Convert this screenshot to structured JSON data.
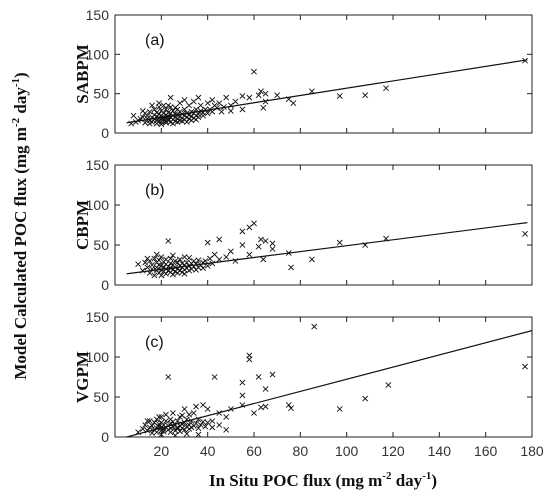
{
  "figure": {
    "xlabel_main": "In Situ POC flux (mg m",
    "xlabel_sup1": "-2",
    "xlabel_mid": " day",
    "xlabel_sup2": "-1",
    "xlabel_end": ")",
    "ylabel_main": "Model Calculated POC flux (mg m",
    "ylabel_sup1": "-2",
    "ylabel_mid": " day",
    "ylabel_sup2": "-1",
    "ylabel_end": ")"
  },
  "chart_data": [
    {
      "type": "scatter",
      "panel_label": "(a)",
      "ylabel": "SABPM",
      "xlim": [
        0,
        180
      ],
      "ylim": [
        0,
        150
      ],
      "xticks": [],
      "yticks": [
        0,
        50,
        100,
        150
      ],
      "fit_line": [
        [
          5,
          13
        ],
        [
          178,
          93
        ]
      ],
      "points": [
        [
          7,
          12
        ],
        [
          9,
          14
        ],
        [
          10,
          16
        ],
        [
          11,
          18
        ],
        [
          12,
          20
        ],
        [
          13,
          13
        ],
        [
          13,
          25
        ],
        [
          14,
          18
        ],
        [
          14,
          22
        ],
        [
          15,
          12
        ],
        [
          15,
          16
        ],
        [
          15,
          27
        ],
        [
          16,
          20
        ],
        [
          16,
          14
        ],
        [
          17,
          23
        ],
        [
          17,
          30
        ],
        [
          17,
          18
        ],
        [
          18,
          16
        ],
        [
          18,
          21
        ],
        [
          18,
          26
        ],
        [
          18,
          12
        ],
        [
          19,
          15
        ],
        [
          19,
          19
        ],
        [
          19,
          24
        ],
        [
          19,
          33
        ],
        [
          20,
          14
        ],
        [
          20,
          18
        ],
        [
          20,
          22
        ],
        [
          20,
          28
        ],
        [
          20,
          11
        ],
        [
          21,
          17
        ],
        [
          21,
          20
        ],
        [
          21,
          25
        ],
        [
          21,
          35
        ],
        [
          22,
          15
        ],
        [
          22,
          19
        ],
        [
          22,
          23
        ],
        [
          22,
          30
        ],
        [
          22,
          13
        ],
        [
          23,
          18
        ],
        [
          23,
          21
        ],
        [
          23,
          26
        ],
        [
          23,
          16
        ],
        [
          24,
          14
        ],
        [
          24,
          20
        ],
        [
          24,
          25
        ],
        [
          24,
          45
        ],
        [
          25,
          17
        ],
        [
          25,
          22
        ],
        [
          25,
          28
        ],
        [
          25,
          12
        ],
        [
          26,
          15
        ],
        [
          26,
          20
        ],
        [
          26,
          24
        ],
        [
          26,
          32
        ],
        [
          27,
          18
        ],
        [
          27,
          23
        ],
        [
          27,
          14
        ],
        [
          28,
          16
        ],
        [
          28,
          21
        ],
        [
          28,
          27
        ],
        [
          28,
          38
        ],
        [
          29,
          19
        ],
        [
          29,
          24
        ],
        [
          29,
          15
        ],
        [
          30,
          17
        ],
        [
          30,
          22
        ],
        [
          30,
          30
        ],
        [
          30,
          42
        ],
        [
          31,
          20
        ],
        [
          31,
          25
        ],
        [
          31,
          14
        ],
        [
          32,
          18
        ],
        [
          32,
          23
        ],
        [
          32,
          35
        ],
        [
          33,
          21
        ],
        [
          33,
          27
        ],
        [
          33,
          16
        ],
        [
          34,
          19
        ],
        [
          34,
          25
        ],
        [
          34,
          40
        ],
        [
          35,
          22
        ],
        [
          35,
          30
        ],
        [
          35,
          17
        ],
        [
          36,
          24
        ],
        [
          36,
          20
        ],
        [
          37,
          28
        ],
        [
          37,
          35
        ],
        [
          38,
          22
        ],
        [
          38,
          26
        ],
        [
          39,
          30
        ],
        [
          40,
          25
        ],
        [
          40,
          38
        ],
        [
          41,
          30
        ],
        [
          42,
          27
        ],
        [
          42,
          42
        ],
        [
          43,
          35
        ],
        [
          44,
          32
        ],
        [
          45,
          38
        ],
        [
          46,
          27
        ],
        [
          47,
          33
        ],
        [
          48,
          45
        ],
        [
          50,
          28
        ],
        [
          50,
          35
        ],
        [
          52,
          40
        ],
        [
          55,
          47
        ],
        [
          55,
          30
        ],
        [
          58,
          45
        ],
        [
          60,
          78
        ],
        [
          62,
          48
        ],
        [
          63,
          53
        ],
        [
          64,
          32
        ],
        [
          65,
          40
        ],
        [
          65,
          50
        ],
        [
          70,
          48
        ],
        [
          75,
          43
        ],
        [
          77,
          38
        ],
        [
          85,
          53
        ],
        [
          97,
          47
        ],
        [
          108,
          48
        ],
        [
          117,
          57
        ],
        [
          177,
          92
        ],
        [
          8,
          22
        ],
        [
          12,
          28
        ],
        [
          16,
          35
        ],
        [
          24,
          33
        ],
        [
          27,
          30
        ],
        [
          36,
          45
        ],
        [
          19,
          38
        ],
        [
          23,
          35
        ]
      ]
    },
    {
      "type": "scatter",
      "panel_label": "(b)",
      "ylabel": "CBPM",
      "xlim": [
        0,
        180
      ],
      "ylim": [
        0,
        150
      ],
      "xticks": [],
      "yticks": [
        0,
        50,
        100,
        150
      ],
      "fit_line": [
        [
          5,
          14
        ],
        [
          178,
          78
        ]
      ],
      "points": [
        [
          10,
          26
        ],
        [
          12,
          18
        ],
        [
          13,
          28
        ],
        [
          14,
          22
        ],
        [
          15,
          15
        ],
        [
          15,
          30
        ],
        [
          16,
          20
        ],
        [
          16,
          25
        ],
        [
          17,
          12
        ],
        [
          17,
          33
        ],
        [
          18,
          18
        ],
        [
          18,
          22
        ],
        [
          18,
          28
        ],
        [
          19,
          15
        ],
        [
          19,
          25
        ],
        [
          19,
          31
        ],
        [
          20,
          12
        ],
        [
          20,
          19
        ],
        [
          20,
          24
        ],
        [
          20,
          35
        ],
        [
          21,
          17
        ],
        [
          21,
          22
        ],
        [
          21,
          29
        ],
        [
          22,
          14
        ],
        [
          22,
          20
        ],
        [
          22,
          26
        ],
        [
          22,
          32
        ],
        [
          23,
          18
        ],
        [
          23,
          23
        ],
        [
          23,
          55
        ],
        [
          24,
          16
        ],
        [
          24,
          21
        ],
        [
          24,
          27
        ],
        [
          24,
          33
        ],
        [
          25,
          13
        ],
        [
          25,
          19
        ],
        [
          25,
          25
        ],
        [
          26,
          17
        ],
        [
          26,
          22
        ],
        [
          26,
          30
        ],
        [
          27,
          15
        ],
        [
          27,
          20
        ],
        [
          27,
          28
        ],
        [
          28,
          18
        ],
        [
          28,
          24
        ],
        [
          28,
          32
        ],
        [
          29,
          16
        ],
        [
          29,
          22
        ],
        [
          29,
          27
        ],
        [
          30,
          19
        ],
        [
          30,
          25
        ],
        [
          30,
          14
        ],
        [
          31,
          21
        ],
        [
          31,
          28
        ],
        [
          32,
          18
        ],
        [
          32,
          24
        ],
        [
          32,
          34
        ],
        [
          33,
          20
        ],
        [
          33,
          27
        ],
        [
          34,
          23
        ],
        [
          34,
          30
        ],
        [
          35,
          19
        ],
        [
          35,
          26
        ],
        [
          36,
          22
        ],
        [
          36,
          31
        ],
        [
          37,
          25
        ],
        [
          38,
          21
        ],
        [
          38,
          28
        ],
        [
          39,
          30
        ],
        [
          40,
          24
        ],
        [
          40,
          53
        ],
        [
          41,
          33
        ],
        [
          42,
          27
        ],
        [
          43,
          38
        ],
        [
          45,
          32
        ],
        [
          45,
          57
        ],
        [
          48,
          35
        ],
        [
          50,
          42
        ],
        [
          52,
          30
        ],
        [
          55,
          50
        ],
        [
          55,
          67
        ],
        [
          58,
          38
        ],
        [
          58,
          72
        ],
        [
          60,
          77
        ],
        [
          62,
          48
        ],
        [
          63,
          57
        ],
        [
          64,
          32
        ],
        [
          65,
          55
        ],
        [
          68,
          45
        ],
        [
          68,
          52
        ],
        [
          75,
          40
        ],
        [
          76,
          22
        ],
        [
          85,
          32
        ],
        [
          97,
          53
        ],
        [
          108,
          50
        ],
        [
          117,
          58
        ],
        [
          177,
          64
        ],
        [
          14,
          33
        ],
        [
          18,
          38
        ],
        [
          25,
          37
        ],
        [
          30,
          35
        ]
      ]
    },
    {
      "type": "scatter",
      "panel_label": "(c)",
      "ylabel": "VGPM",
      "xlim": [
        0,
        180
      ],
      "ylim": [
        0,
        150
      ],
      "xticks": [
        20,
        40,
        60,
        80,
        100,
        120,
        140,
        160,
        180
      ],
      "yticks": [
        0,
        50,
        100,
        150
      ],
      "fit_line": [
        [
          5,
          0
        ],
        [
          180,
          133
        ]
      ],
      "points": [
        [
          10,
          6
        ],
        [
          12,
          10
        ],
        [
          13,
          15
        ],
        [
          14,
          8
        ],
        [
          15,
          12
        ],
        [
          15,
          20
        ],
        [
          16,
          5
        ],
        [
          16,
          14
        ],
        [
          17,
          9
        ],
        [
          17,
          18
        ],
        [
          18,
          11
        ],
        [
          18,
          22
        ],
        [
          18,
          6
        ],
        [
          19,
          13
        ],
        [
          19,
          16
        ],
        [
          20,
          8
        ],
        [
          20,
          12
        ],
        [
          20,
          18
        ],
        [
          20,
          25
        ],
        [
          21,
          10
        ],
        [
          21,
          15
        ],
        [
          21,
          7
        ],
        [
          22,
          12
        ],
        [
          22,
          20
        ],
        [
          22,
          28
        ],
        [
          23,
          9
        ],
        [
          23,
          14
        ],
        [
          23,
          75
        ],
        [
          24,
          11
        ],
        [
          24,
          17
        ],
        [
          24,
          6
        ],
        [
          25,
          13
        ],
        [
          25,
          19
        ],
        [
          25,
          30
        ],
        [
          26,
          8
        ],
        [
          26,
          15
        ],
        [
          27,
          10
        ],
        [
          27,
          20
        ],
        [
          27,
          12
        ],
        [
          28,
          14
        ],
        [
          28,
          25
        ],
        [
          28,
          7
        ],
        [
          29,
          11
        ],
        [
          29,
          16
        ],
        [
          30,
          9
        ],
        [
          30,
          18
        ],
        [
          30,
          35
        ],
        [
          31,
          13
        ],
        [
          31,
          22
        ],
        [
          32,
          10
        ],
        [
          32,
          15
        ],
        [
          32,
          28
        ],
        [
          33,
          12
        ],
        [
          33,
          20
        ],
        [
          34,
          14
        ],
        [
          34,
          30
        ],
        [
          35,
          17
        ],
        [
          35,
          38
        ],
        [
          36,
          11
        ],
        [
          36,
          22
        ],
        [
          37,
          15
        ],
        [
          38,
          19
        ],
        [
          38,
          40
        ],
        [
          39,
          13
        ],
        [
          40,
          18
        ],
        [
          40,
          35
        ],
        [
          42,
          20
        ],
        [
          42,
          12
        ],
        [
          43,
          75
        ],
        [
          45,
          15
        ],
        [
          45,
          30
        ],
        [
          48,
          9
        ],
        [
          48,
          25
        ],
        [
          50,
          35
        ],
        [
          55,
          40
        ],
        [
          55,
          68
        ],
        [
          55,
          52
        ],
        [
          58,
          97
        ],
        [
          58,
          102
        ],
        [
          60,
          30
        ],
        [
          62,
          75
        ],
        [
          63,
          37
        ],
        [
          65,
          60
        ],
        [
          65,
          38
        ],
        [
          68,
          78
        ],
        [
          75,
          40
        ],
        [
          76,
          36
        ],
        [
          86,
          138
        ],
        [
          97,
          35
        ],
        [
          108,
          48
        ],
        [
          118,
          65
        ],
        [
          177,
          88
        ],
        [
          14,
          20
        ],
        [
          19,
          25
        ],
        [
          24,
          22
        ],
        [
          29,
          27
        ],
        [
          20,
          3
        ],
        [
          26,
          2
        ],
        [
          31,
          4
        ],
        [
          36,
          3
        ]
      ]
    }
  ]
}
